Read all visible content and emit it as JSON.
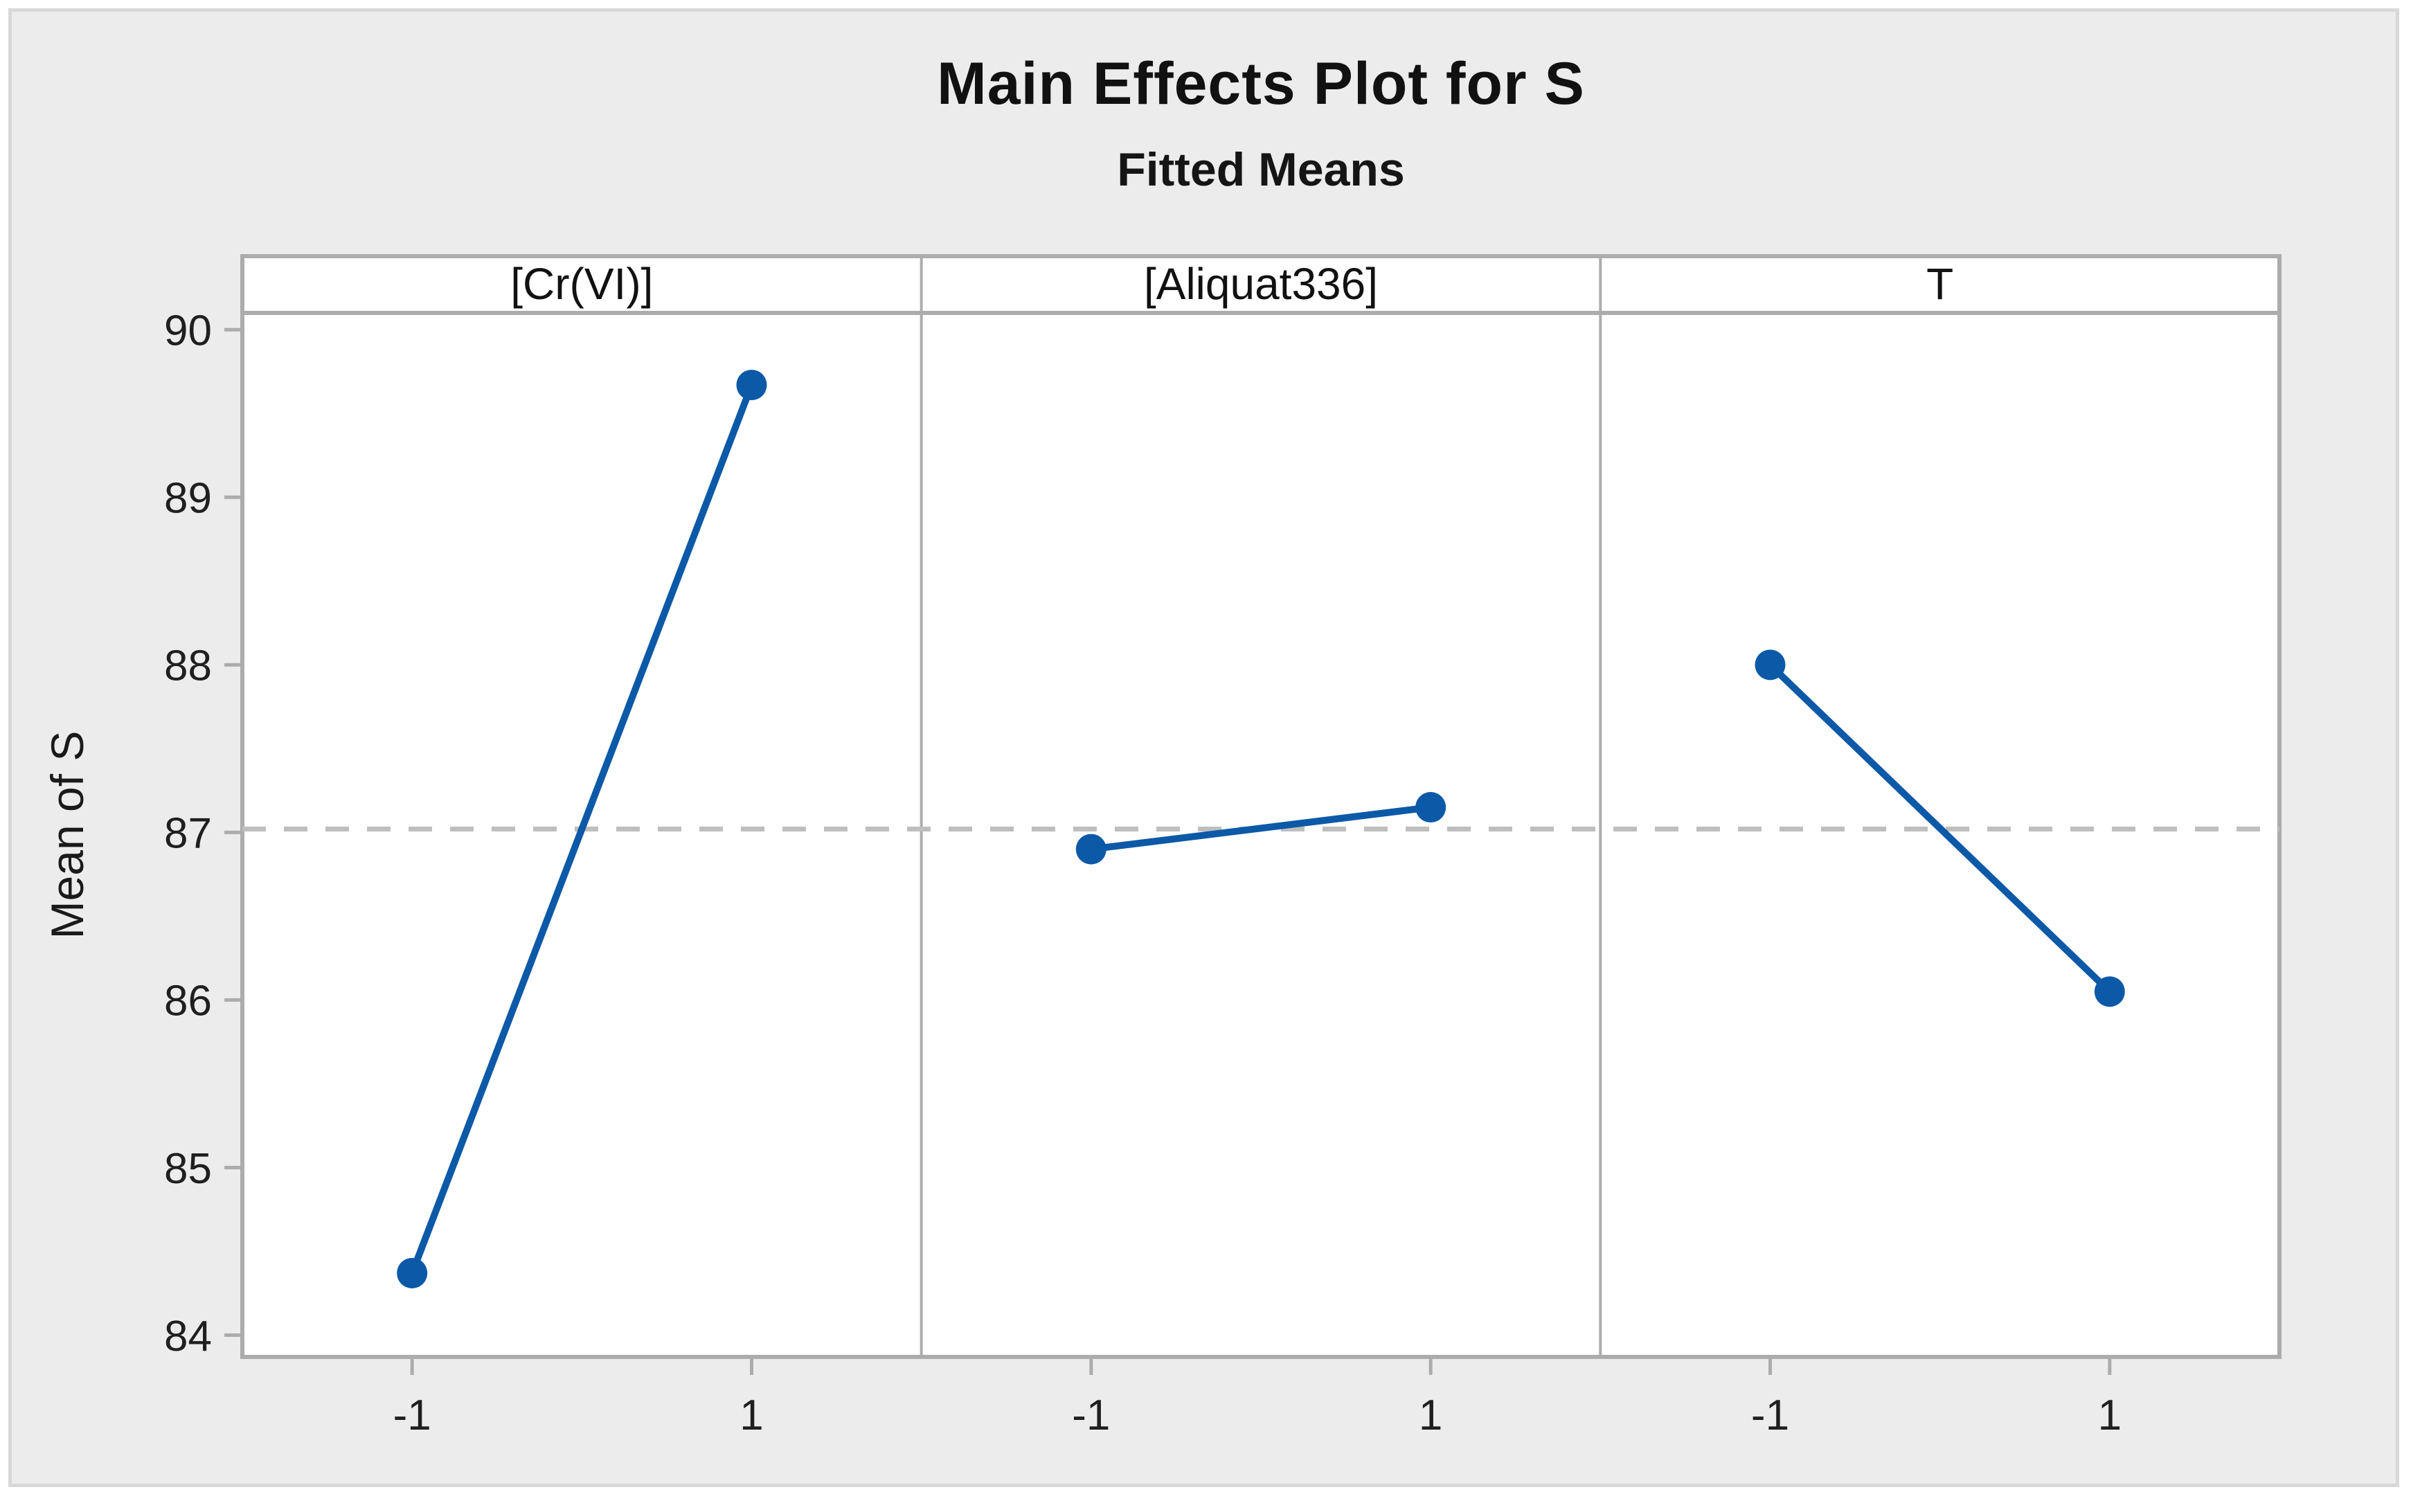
{
  "figure": {
    "background_color": "#ECECEC",
    "outer_border_color": "#D8D8D8",
    "panel_fill_color": "#FFFFFF",
    "frame_color": "#ACACAC",
    "tick_color": "#ACACAC",
    "dashed_line_color": "#BEBEBE",
    "accent_color": "#0C59A7",
    "text_color": "#1F1F1F",
    "header_text_color": "#111111"
  },
  "chart_data": {
    "type": "line",
    "title": "Main Effects Plot for S",
    "subtitle": "Fitted Means",
    "ylabel": "Mean of S",
    "xlabel": "",
    "ylim": [
      83.87,
      90.1
    ],
    "yticks": [
      84,
      85,
      86,
      87,
      88,
      89,
      90
    ],
    "x_levels": [
      "-1",
      "1"
    ],
    "grand_mean": 87.02,
    "grid": "off",
    "legend_position": "none",
    "panels": [
      {
        "label": "[Cr(VI)]",
        "x": [
          -1,
          1
        ],
        "values": [
          84.37,
          89.67
        ]
      },
      {
        "label": "[Aliquat336]",
        "x": [
          -1,
          1
        ],
        "values": [
          86.9,
          87.15
        ]
      },
      {
        "label": "T",
        "x": [
          -1,
          1
        ],
        "values": [
          88.0,
          86.05
        ]
      }
    ]
  }
}
